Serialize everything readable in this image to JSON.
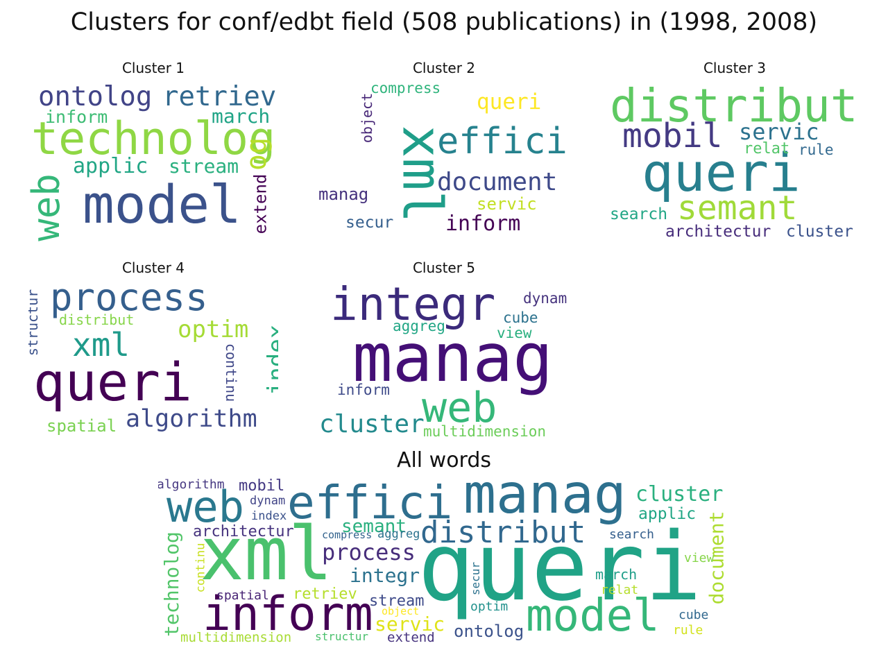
{
  "figure": {
    "title": "Clusters for conf/edbt field (508 publications) in (1998, 2008)"
  },
  "clouds": [
    {
      "title": "Cluster 1",
      "words": [
        {
          "text": "technolog",
          "color": "#8fd744"
        },
        {
          "text": "model",
          "color": "#3b528b"
        },
        {
          "text": "ontolog",
          "color": "#414487"
        },
        {
          "text": "retriev",
          "color": "#31688e"
        },
        {
          "text": "web",
          "color": "#35b779"
        },
        {
          "text": "applic",
          "color": "#21a685"
        },
        {
          "text": "stream",
          "color": "#2ab07f"
        },
        {
          "text": "inform",
          "color": "#3dbc74"
        },
        {
          "text": "march",
          "color": "#20a486"
        },
        {
          "text": "og",
          "color": "#b5de2b"
        },
        {
          "text": "extend",
          "color": "#440154"
        }
      ]
    },
    {
      "title": "Cluster 2",
      "words": [
        {
          "text": "xml",
          "color": "#1f9e89"
        },
        {
          "text": "effici",
          "color": "#26828e"
        },
        {
          "text": "document",
          "color": "#3e4989"
        },
        {
          "text": "queri",
          "color": "#fde725"
        },
        {
          "text": "compress",
          "color": "#2fb47c"
        },
        {
          "text": "object",
          "color": "#482878"
        },
        {
          "text": "manag",
          "color": "#46327e"
        },
        {
          "text": "secur",
          "color": "#355f8d"
        },
        {
          "text": "servic",
          "color": "#c2df23"
        },
        {
          "text": "inform",
          "color": "#440154"
        }
      ]
    },
    {
      "title": "Cluster 3",
      "words": [
        {
          "text": "distribut",
          "color": "#5ec962"
        },
        {
          "text": "queri",
          "color": "#277f8e"
        },
        {
          "text": "mobil",
          "color": "#443a83"
        },
        {
          "text": "servic",
          "color": "#2c728e"
        },
        {
          "text": "relat",
          "color": "#52c569"
        },
        {
          "text": "rule",
          "color": "#31688e"
        },
        {
          "text": "semant",
          "color": "#a0da39"
        },
        {
          "text": "search",
          "color": "#21a685"
        },
        {
          "text": "architectur",
          "color": "#472d7b"
        },
        {
          "text": "cluster",
          "color": "#3b528b"
        }
      ]
    },
    {
      "title": "Cluster 4",
      "words": [
        {
          "text": "process",
          "color": "#355f8d"
        },
        {
          "text": "xml",
          "color": "#1f9a8a"
        },
        {
          "text": "queri",
          "color": "#440154"
        },
        {
          "text": "optim",
          "color": "#a5db36"
        },
        {
          "text": "index",
          "color": "#29af7f"
        },
        {
          "text": "algorithm",
          "color": "#3e4a89"
        },
        {
          "text": "distribut",
          "color": "#86d549"
        },
        {
          "text": "structur",
          "color": "#3b528b"
        },
        {
          "text": "continu",
          "color": "#3f4788"
        },
        {
          "text": "spatial",
          "color": "#7ad151"
        }
      ]
    },
    {
      "title": "Cluster 5",
      "words": [
        {
          "text": "integr",
          "color": "#3b2a7b"
        },
        {
          "text": "manag",
          "color": "#440f76"
        },
        {
          "text": "web",
          "color": "#35b779"
        },
        {
          "text": "cluster",
          "color": "#238a8d"
        },
        {
          "text": "multidimension",
          "color": "#6ccd5a"
        },
        {
          "text": "dynam",
          "color": "#46337e"
        },
        {
          "text": "cube",
          "color": "#2c728e"
        },
        {
          "text": "view",
          "color": "#29af7f"
        },
        {
          "text": "aggreg",
          "color": "#21a685"
        },
        {
          "text": "inform",
          "color": "#3e4a89"
        }
      ]
    },
    {
      "title": "All words",
      "words": [
        {
          "text": "queri",
          "color": "#20a386"
        },
        {
          "text": "xml",
          "color": "#4ac16d"
        },
        {
          "text": "manag",
          "color": "#2d708e"
        },
        {
          "text": "effici",
          "color": "#2e6e8e"
        },
        {
          "text": "web",
          "color": "#2a788e"
        },
        {
          "text": "inform",
          "color": "#440154"
        },
        {
          "text": "model",
          "color": "#35b779"
        },
        {
          "text": "distribut",
          "color": "#31688e"
        },
        {
          "text": "process",
          "color": "#472d7b"
        },
        {
          "text": "integr",
          "color": "#2c728e"
        },
        {
          "text": "semant",
          "color": "#2ab07f"
        },
        {
          "text": "architectur",
          "color": "#46337e"
        },
        {
          "text": "mobil",
          "color": "#443983"
        },
        {
          "text": "algorithm",
          "color": "#453781"
        },
        {
          "text": "dynam",
          "color": "#414487"
        },
        {
          "text": "index",
          "color": "#3b528b"
        },
        {
          "text": "compress",
          "color": "#33638d"
        },
        {
          "text": "aggreg",
          "color": "#2c728e"
        },
        {
          "text": "technolog",
          "color": "#52c569"
        },
        {
          "text": "continu",
          "color": "#c8e020"
        },
        {
          "text": "spatial",
          "color": "#482475"
        },
        {
          "text": "retriev",
          "color": "#b5de2b"
        },
        {
          "text": "stream",
          "color": "#3e4a89"
        },
        {
          "text": "object",
          "color": "#fde725"
        },
        {
          "text": "secur",
          "color": "#2c728e"
        },
        {
          "text": "servic",
          "color": "#dfe318"
        },
        {
          "text": "optim",
          "color": "#21918c"
        },
        {
          "text": "ontolog",
          "color": "#3b528b"
        },
        {
          "text": "extend",
          "color": "#46337e"
        },
        {
          "text": "structur",
          "color": "#4ac16d"
        },
        {
          "text": "multidimension",
          "color": "#a8db34"
        },
        {
          "text": "cluster",
          "color": "#2ab07f"
        },
        {
          "text": "applic",
          "color": "#21a685"
        },
        {
          "text": "search",
          "color": "#355f8d"
        },
        {
          "text": "document",
          "color": "#addc30"
        },
        {
          "text": "view",
          "color": "#86d549"
        },
        {
          "text": "march",
          "color": "#1f9e89"
        },
        {
          "text": "relat",
          "color": "#b5de2b"
        },
        {
          "text": "cube",
          "color": "#31688e"
        },
        {
          "text": "rule",
          "color": "#d2e21b"
        }
      ]
    }
  ]
}
